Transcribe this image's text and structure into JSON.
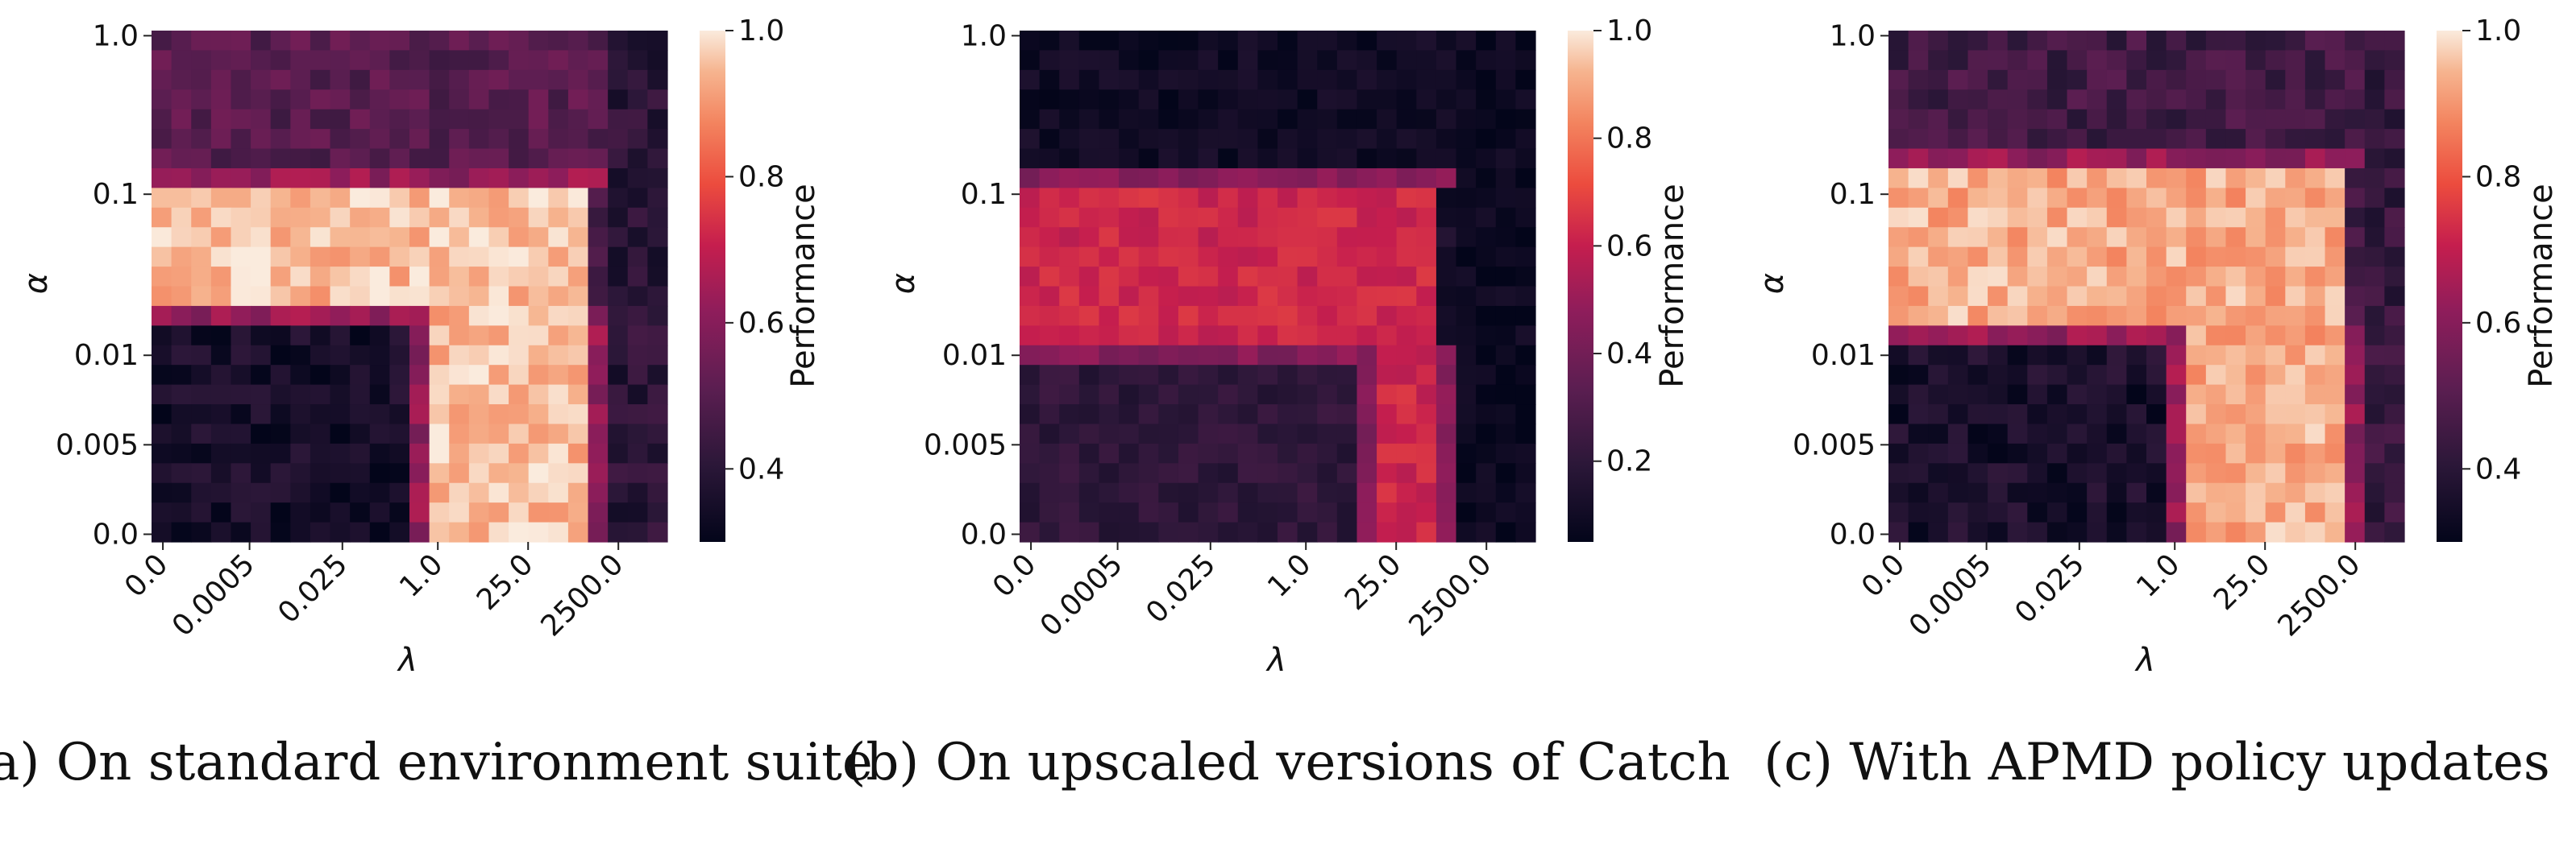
{
  "chart_data": [
    {
      "type": "heatmap",
      "caption": "(a) On standard environment suite",
      "xlabel": "λ",
      "ylabel": "α",
      "colorbar_label": "Performance",
      "x_tick_labels": [
        "0.0",
        "0.0005",
        "0.025",
        "1.0",
        "25.0",
        "2500.0"
      ],
      "y_tick_labels": [
        "1.0",
        "0.1",
        "0.01",
        "0.005",
        "0.0"
      ],
      "colorbar_range": [
        0.3,
        1.0
      ],
      "colorbar_ticks": [
        "0.4",
        "0.6",
        "0.8",
        "1.0"
      ],
      "grid": {
        "cols": 26,
        "rows": 26
      },
      "pattern": {
        "base": 0.48,
        "top_band_value": 0.5,
        "l_region_value": 0.95,
        "l_outer_value": 0.62,
        "inner_value": 0.35,
        "right_col_value": 0.4,
        "l_top_row": 8,
        "l_bottom_row": 13,
        "l_left_col": 14,
        "l_right_col": 21,
        "noise": 0.06
      }
    },
    {
      "type": "heatmap",
      "caption": "(b) On upscaled versions of Catch",
      "xlabel": "λ",
      "ylabel": "α",
      "colorbar_label": "Performance",
      "x_tick_labels": [
        "0.0",
        "0.0005",
        "0.025",
        "1.0",
        "25.0",
        "2500.0"
      ],
      "y_tick_labels": [
        "1.0",
        "0.1",
        "0.01",
        "0.005",
        "0.0"
      ],
      "colorbar_range": [
        0.05,
        1.0
      ],
      "colorbar_ticks": [
        "0.2",
        "0.4",
        "0.6",
        "0.8",
        "1.0"
      ],
      "grid": {
        "cols": 26,
        "rows": 26
      },
      "pattern": {
        "base": 0.12,
        "top_band_value": 0.1,
        "l_region_value": 0.62,
        "l_outer_value": 0.45,
        "inner_value": 0.2,
        "right_col_value": 0.08,
        "l_top_row": 8,
        "l_bottom_row": 15,
        "l_left_col": 18,
        "l_right_col": 20,
        "noise": 0.05
      }
    },
    {
      "type": "heatmap",
      "caption": "(c) With APMD policy updates",
      "xlabel": "λ",
      "ylabel": "α",
      "colorbar_label": "Performance",
      "x_tick_labels": [
        "0.0",
        "0.0005",
        "0.025",
        "1.0",
        "25.0",
        "2500.0"
      ],
      "y_tick_labels": [
        "1.0",
        "0.1",
        "0.01",
        "0.005",
        "0.0"
      ],
      "colorbar_range": [
        0.3,
        1.0
      ],
      "colorbar_ticks": [
        "0.4",
        "0.6",
        "0.8",
        "1.0"
      ],
      "grid": {
        "cols": 26,
        "rows": 26
      },
      "pattern": {
        "base": 0.45,
        "top_band_value": 0.45,
        "l_region_value": 0.93,
        "l_outer_value": 0.62,
        "inner_value": 0.36,
        "right_col_value": 0.42,
        "l_top_row": 7,
        "l_bottom_row": 14,
        "l_left_col": 15,
        "l_right_col": 22,
        "noise": 0.06
      }
    }
  ]
}
